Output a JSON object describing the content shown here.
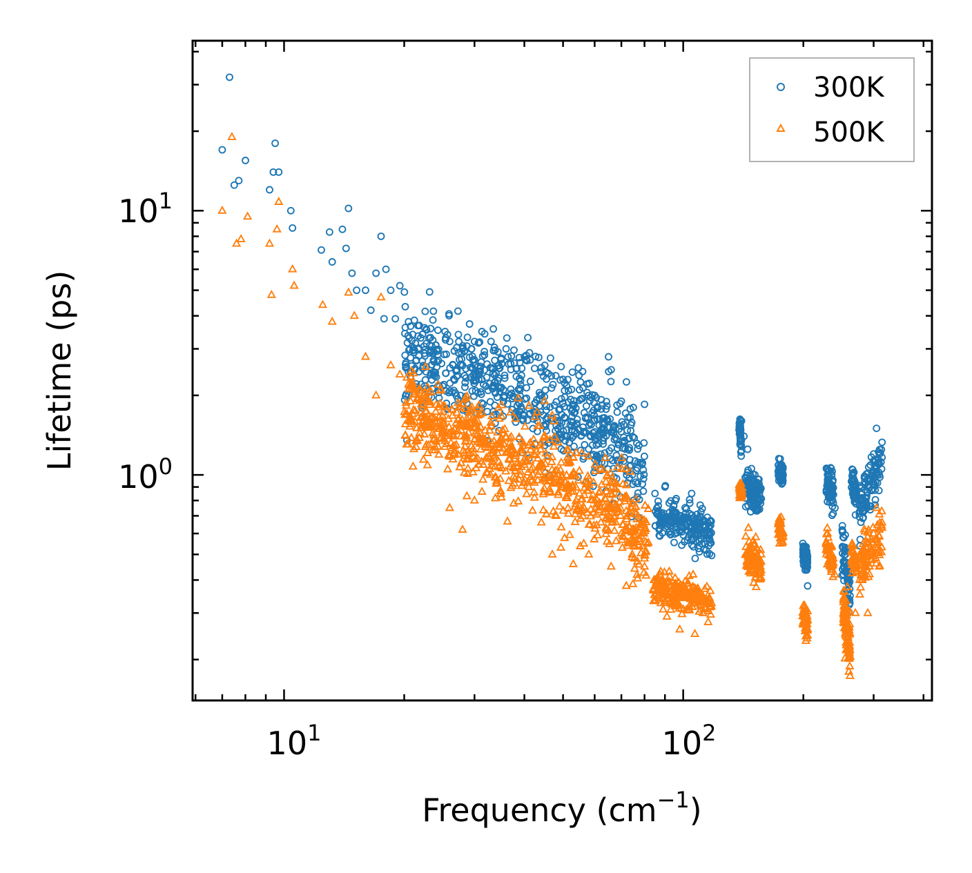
{
  "chart_data": {
    "type": "scatter",
    "title": "",
    "xlabel": "Frequency (cm",
    "xlabel_sup": "−1",
    "xlabel_suffix": ")",
    "ylabel": "Lifetime (ps)",
    "xscale": "log",
    "yscale": "log",
    "xlim": [
      5.9,
      420
    ],
    "ylim": [
      0.14,
      44
    ],
    "x_ticks": [
      {
        "base": "10",
        "exp": "1"
      },
      {
        "base": "10",
        "exp": "2"
      }
    ],
    "y_ticks": [
      {
        "base": "10",
        "exp": "1"
      },
      {
        "base": "10",
        "exp": "0"
      }
    ],
    "legend_position": "top-right",
    "series": [
      {
        "name": "300K",
        "label": "300K",
        "color": "#1f77b4",
        "marker": "circle",
        "points": [
          [
            7.0,
            17.0
          ],
          [
            7.3,
            32.0
          ],
          [
            7.5,
            12.5
          ],
          [
            7.7,
            13.0
          ],
          [
            8.0,
            15.5
          ],
          [
            9.2,
            12.0
          ],
          [
            9.4,
            14.0
          ],
          [
            9.5,
            18.0
          ],
          [
            9.7,
            14.0
          ],
          [
            10.4,
            10.0
          ],
          [
            10.5,
            8.6
          ],
          [
            12.4,
            7.1
          ],
          [
            13.0,
            8.3
          ],
          [
            13.2,
            6.4
          ],
          [
            14.0,
            8.5
          ],
          [
            14.3,
            7.2
          ],
          [
            14.5,
            10.2
          ],
          [
            14.8,
            5.8
          ],
          [
            15.2,
            5.0
          ],
          [
            16.0,
            5.0
          ],
          [
            17.0,
            5.8
          ],
          [
            17.5,
            8.0
          ],
          [
            18.0,
            6.0
          ],
          [
            18.5,
            5.0
          ],
          [
            19.5,
            5.2
          ],
          [
            16.5,
            4.2
          ],
          [
            17.8,
            3.9
          ],
          [
            19.0,
            3.9
          ],
          [
            20.5,
            3.8
          ],
          [
            21.0,
            3.4
          ],
          [
            22.0,
            3.3
          ],
          [
            24.0,
            3.1
          ],
          [
            26.0,
            3.2
          ],
          [
            28.0,
            3.0
          ],
          [
            30.0,
            3.2
          ],
          [
            33.0,
            3.2
          ],
          [
            36.0,
            3.0
          ],
          [
            40.0,
            2.8
          ],
          [
            45.0,
            2.6
          ],
          [
            50.0,
            2.3
          ],
          [
            55.0,
            2.1
          ],
          [
            60.0,
            2.0
          ],
          [
            65.0,
            2.8
          ],
          [
            66.0,
            2.5
          ],
          [
            70.0,
            1.9
          ],
          [
            75.0,
            1.8
          ],
          [
            80.0,
            1.85
          ],
          [
            85.0,
            0.85
          ],
          [
            90.0,
            0.9
          ],
          [
            95.0,
            0.72
          ],
          [
            100.0,
            0.68
          ],
          [
            105.0,
            0.85
          ],
          [
            110.0,
            0.66
          ],
          [
            115.0,
            0.6
          ],
          [
            140.0,
            1.6
          ],
          [
            142.0,
            1.4
          ],
          [
            145.0,
            1.25
          ],
          [
            150.0,
            0.95
          ],
          [
            155.0,
            0.8
          ],
          [
            175.0,
            1.15
          ],
          [
            178.0,
            1.0
          ],
          [
            200.0,
            0.5
          ],
          [
            202.0,
            0.45
          ],
          [
            205.0,
            0.38
          ],
          [
            230.0,
            1.05
          ],
          [
            235.0,
            0.85
          ],
          [
            240.0,
            0.75
          ],
          [
            255.0,
            0.5
          ],
          [
            258.0,
            0.4
          ],
          [
            265.0,
            1.05
          ],
          [
            268.0,
            0.9
          ],
          [
            280.0,
            0.9
          ],
          [
            300.0,
            1.2
          ],
          [
            305.0,
            1.5
          ],
          [
            310.0,
            1.0
          ]
        ]
      },
      {
        "name": "500K",
        "label": "500K",
        "color": "#ff7f0e",
        "marker": "triangle",
        "points": [
          [
            7.0,
            10.0
          ],
          [
            7.4,
            19.0
          ],
          [
            7.6,
            7.5
          ],
          [
            7.8,
            7.8
          ],
          [
            8.1,
            9.5
          ],
          [
            9.2,
            7.5
          ],
          [
            9.6,
            8.5
          ],
          [
            9.7,
            10.8
          ],
          [
            9.3,
            4.8
          ],
          [
            10.5,
            6.0
          ],
          [
            10.6,
            5.2
          ],
          [
            12.5,
            4.4
          ],
          [
            13.2,
            3.8
          ],
          [
            14.5,
            4.9
          ],
          [
            15.0,
            4.0
          ],
          [
            16.0,
            2.8
          ],
          [
            17.5,
            4.7
          ],
          [
            18.5,
            2.6
          ],
          [
            19.5,
            2.4
          ],
          [
            17.0,
            2.0
          ],
          [
            20.5,
            2.2
          ],
          [
            21.0,
            1.7
          ],
          [
            23.0,
            1.9
          ],
          [
            25.0,
            1.6
          ],
          [
            27.0,
            1.3
          ],
          [
            29.0,
            1.2
          ],
          [
            32.0,
            1.35
          ],
          [
            35.0,
            1.3
          ],
          [
            38.0,
            1.2
          ],
          [
            42.0,
            1.0
          ],
          [
            46.0,
            0.95
          ],
          [
            50.0,
            0.9
          ],
          [
            55.0,
            0.85
          ],
          [
            60.0,
            0.8
          ],
          [
            65.0,
            0.7
          ],
          [
            70.0,
            0.6
          ],
          [
            75.0,
            0.55
          ],
          [
            80.0,
            0.45
          ],
          [
            26.0,
            0.75
          ],
          [
            28.0,
            0.62
          ],
          [
            30.0,
            0.8
          ],
          [
            47.0,
            0.5
          ],
          [
            58.0,
            0.5
          ],
          [
            66.0,
            0.45
          ],
          [
            72.0,
            0.38
          ],
          [
            85.0,
            0.4
          ],
          [
            90.0,
            0.35
          ],
          [
            95.0,
            0.34
          ],
          [
            100.0,
            0.31
          ],
          [
            105.0,
            0.35
          ],
          [
            110.0,
            0.36
          ],
          [
            115.0,
            0.33
          ],
          [
            98.0,
            0.26
          ],
          [
            107.0,
            0.25
          ],
          [
            140.0,
            0.9
          ],
          [
            145.0,
            0.5
          ],
          [
            150.0,
            0.45
          ],
          [
            155.0,
            0.48
          ],
          [
            175.0,
            0.65
          ],
          [
            178.0,
            0.6
          ],
          [
            200.0,
            0.3
          ],
          [
            203.0,
            0.26
          ],
          [
            230.0,
            0.6
          ],
          [
            235.0,
            0.45
          ],
          [
            240.0,
            0.42
          ],
          [
            255.0,
            0.3
          ],
          [
            258.0,
            0.22
          ],
          [
            260.0,
            0.18
          ],
          [
            265.0,
            0.55
          ],
          [
            270.0,
            0.3
          ],
          [
            280.0,
            0.4
          ],
          [
            290.0,
            0.3
          ],
          [
            300.0,
            0.6
          ],
          [
            305.0,
            0.75
          ],
          [
            310.0,
            0.45
          ]
        ]
      }
    ],
    "clusters": [
      {
        "series": 0,
        "x_range": [
          20,
          80
        ],
        "y_trend": [
          [
            20,
            2.8
          ],
          [
            30,
            2.3
          ],
          [
            40,
            2.0
          ],
          [
            55,
            1.6
          ],
          [
            70,
            1.3
          ],
          [
            82,
            1.0
          ]
        ],
        "spread": 0.18,
        "count": 700
      },
      {
        "series": 0,
        "x_range": [
          85,
          118
        ],
        "y_trend": [
          [
            85,
            0.7
          ],
          [
            118,
            0.6
          ]
        ],
        "spread": 0.08,
        "count": 220
      },
      {
        "series": 0,
        "x_range": [
          138,
          140
        ],
        "y_trend": [
          [
            138,
            1.5
          ],
          [
            140,
            1.35
          ]
        ],
        "spread": 0.05,
        "count": 45
      },
      {
        "series": 0,
        "x_range": [
          143,
          157
        ],
        "y_trend": [
          [
            143,
            0.9
          ],
          [
            157,
            0.8
          ]
        ],
        "spread": 0.08,
        "count": 110
      },
      {
        "series": 0,
        "x_range": [
          173,
          178
        ],
        "y_trend": [
          [
            173,
            1.05
          ],
          [
            178,
            1.0
          ]
        ],
        "spread": 0.04,
        "count": 50
      },
      {
        "series": 0,
        "x_range": [
          199,
          205
        ],
        "y_trend": [
          [
            199,
            0.5
          ],
          [
            205,
            0.47
          ]
        ],
        "spread": 0.05,
        "count": 55
      },
      {
        "series": 0,
        "x_range": [
          228,
          238
        ],
        "y_trend": [
          [
            228,
            0.95
          ],
          [
            238,
            0.85
          ]
        ],
        "spread": 0.07,
        "count": 65
      },
      {
        "series": 0,
        "x_range": [
          250,
          262
        ],
        "y_trend": [
          [
            250,
            0.55
          ],
          [
            262,
            0.35
          ]
        ],
        "spread": 0.1,
        "count": 70
      },
      {
        "series": 0,
        "x_range": [
          264,
          272
        ],
        "y_trend": [
          [
            264,
            0.95
          ],
          [
            272,
            0.8
          ]
        ],
        "spread": 0.06,
        "count": 50
      },
      {
        "series": 0,
        "x_range": [
          276,
          315
        ],
        "y_trend": [
          [
            276,
            0.75
          ],
          [
            315,
            1.15
          ]
        ],
        "spread": 0.09,
        "count": 100
      },
      {
        "series": 1,
        "x_range": [
          20,
          82
        ],
        "y_trend": [
          [
            20,
            1.8
          ],
          [
            30,
            1.3
          ],
          [
            40,
            1.15
          ],
          [
            55,
            0.85
          ],
          [
            70,
            0.7
          ],
          [
            82,
            0.5
          ]
        ],
        "spread": 0.17,
        "count": 750
      },
      {
        "series": 1,
        "x_range": [
          84,
          118
        ],
        "y_trend": [
          [
            84,
            0.38
          ],
          [
            118,
            0.33
          ]
        ],
        "spread": 0.06,
        "count": 220
      },
      {
        "series": 1,
        "x_range": [
          138,
          141
        ],
        "y_trend": [
          [
            138,
            0.9
          ],
          [
            141,
            0.85
          ]
        ],
        "spread": 0.04,
        "count": 35
      },
      {
        "series": 1,
        "x_range": [
          143,
          157
        ],
        "y_trend": [
          [
            143,
            0.5
          ],
          [
            157,
            0.45
          ]
        ],
        "spread": 0.08,
        "count": 110
      },
      {
        "series": 1,
        "x_range": [
          173,
          178
        ],
        "y_trend": [
          [
            173,
            0.63
          ],
          [
            178,
            0.6
          ]
        ],
        "spread": 0.04,
        "count": 45
      },
      {
        "series": 1,
        "x_range": [
          199,
          205
        ],
        "y_trend": [
          [
            199,
            0.3
          ],
          [
            205,
            0.27
          ]
        ],
        "spread": 0.05,
        "count": 55
      },
      {
        "series": 1,
        "x_range": [
          228,
          238
        ],
        "y_trend": [
          [
            228,
            0.55
          ],
          [
            238,
            0.45
          ]
        ],
        "spread": 0.06,
        "count": 55
      },
      {
        "series": 1,
        "x_range": [
          252,
          262
        ],
        "y_trend": [
          [
            252,
            0.3
          ],
          [
            262,
            0.22
          ]
        ],
        "spread": 0.1,
        "count": 90
      },
      {
        "series": 1,
        "x_range": [
          264,
          272
        ],
        "y_trend": [
          [
            264,
            0.5
          ],
          [
            272,
            0.45
          ]
        ],
        "spread": 0.05,
        "count": 40
      },
      {
        "series": 1,
        "x_range": [
          276,
          315
        ],
        "y_trend": [
          [
            276,
            0.45
          ],
          [
            315,
            0.6
          ]
        ],
        "spread": 0.1,
        "count": 100
      }
    ]
  }
}
